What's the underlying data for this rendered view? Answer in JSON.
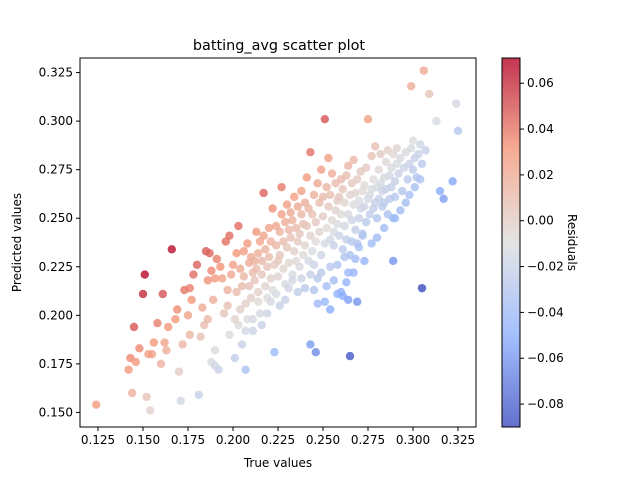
{
  "chart_data": {
    "type": "scatter",
    "title": "batting_avg scatter plot",
    "xlabel": "True values",
    "ylabel": "Predicted values",
    "xlim": [
      0.115,
      0.335
    ],
    "ylim": [
      0.1425,
      0.3325
    ],
    "xticks": [
      0.125,
      0.15,
      0.175,
      0.2,
      0.225,
      0.25,
      0.275,
      0.3,
      0.325
    ],
    "xtick_labels": [
      "0.125",
      "0.150",
      "0.175",
      "0.200",
      "0.225",
      "0.250",
      "0.275",
      "0.300",
      "0.325"
    ],
    "yticks": [
      0.15,
      0.175,
      0.2,
      0.225,
      0.25,
      0.275,
      0.3,
      0.325
    ],
    "ytick_labels": [
      "0.150",
      "0.175",
      "0.200",
      "0.225",
      "0.250",
      "0.275",
      "0.300",
      "0.325"
    ],
    "colorbar": {
      "label": "Residuals",
      "colormap": "coolwarm",
      "range": [
        -0.09,
        0.071
      ],
      "ticks": [
        0.06,
        0.04,
        0.02,
        0.0,
        -0.02,
        -0.04,
        -0.06,
        -0.08
      ],
      "tick_labels": [
        "0.06",
        "0.04",
        "0.02",
        "0.00",
        "−0.02",
        "−0.04",
        "−0.06",
        "−0.08"
      ]
    },
    "marker_alpha": 0.8,
    "points": [
      [
        0.124,
        0.154
      ],
      [
        0.142,
        0.172
      ],
      [
        0.143,
        0.178
      ],
      [
        0.144,
        0.16
      ],
      [
        0.145,
        0.194
      ],
      [
        0.148,
        0.183
      ],
      [
        0.15,
        0.211
      ],
      [
        0.151,
        0.221
      ],
      [
        0.152,
        0.158
      ],
      [
        0.154,
        0.151
      ],
      [
        0.155,
        0.18
      ],
      [
        0.156,
        0.186
      ],
      [
        0.16,
        0.175
      ],
      [
        0.161,
        0.211
      ],
      [
        0.162,
        0.186
      ],
      [
        0.164,
        0.194
      ],
      [
        0.166,
        0.234
      ],
      [
        0.168,
        0.198
      ],
      [
        0.17,
        0.171
      ],
      [
        0.171,
        0.156
      ],
      [
        0.172,
        0.185
      ],
      [
        0.173,
        0.213
      ],
      [
        0.175,
        0.2
      ],
      [
        0.176,
        0.214
      ],
      [
        0.177,
        0.208
      ],
      [
        0.178,
        0.221
      ],
      [
        0.18,
        0.226
      ],
      [
        0.181,
        0.159
      ],
      [
        0.182,
        0.189
      ],
      [
        0.184,
        0.195
      ],
      [
        0.185,
        0.233
      ],
      [
        0.186,
        0.218
      ],
      [
        0.186,
        0.198
      ],
      [
        0.187,
        0.232
      ],
      [
        0.188,
        0.176
      ],
      [
        0.188,
        0.223
      ],
      [
        0.189,
        0.208
      ],
      [
        0.19,
        0.174
      ],
      [
        0.19,
        0.182
      ],
      [
        0.191,
        0.229
      ],
      [
        0.192,
        0.172
      ],
      [
        0.193,
        0.225
      ],
      [
        0.194,
        0.219
      ],
      [
        0.195,
        0.201
      ],
      [
        0.196,
        0.238
      ],
      [
        0.197,
        0.213
      ],
      [
        0.198,
        0.241
      ],
      [
        0.198,
        0.19
      ],
      [
        0.199,
        0.221
      ],
      [
        0.2,
        0.226
      ],
      [
        0.201,
        0.178
      ],
      [
        0.202,
        0.212
      ],
      [
        0.202,
        0.232
      ],
      [
        0.203,
        0.246
      ],
      [
        0.203,
        0.195
      ],
      [
        0.204,
        0.224
      ],
      [
        0.205,
        0.215
      ],
      [
        0.205,
        0.185
      ],
      [
        0.206,
        0.233
      ],
      [
        0.206,
        0.22
      ],
      [
        0.207,
        0.206
      ],
      [
        0.207,
        0.172
      ],
      [
        0.208,
        0.237
      ],
      [
        0.208,
        0.198
      ],
      [
        0.209,
        0.227
      ],
      [
        0.209,
        0.215
      ],
      [
        0.21,
        0.23
      ],
      [
        0.21,
        0.209
      ],
      [
        0.211,
        0.222
      ],
      [
        0.211,
        0.192
      ],
      [
        0.212,
        0.228
      ],
      [
        0.212,
        0.218
      ],
      [
        0.213,
        0.224
      ],
      [
        0.213,
        0.243
      ],
      [
        0.214,
        0.232
      ],
      [
        0.214,
        0.212
      ],
      [
        0.215,
        0.238
      ],
      [
        0.215,
        0.201
      ],
      [
        0.216,
        0.228
      ],
      [
        0.216,
        0.221
      ],
      [
        0.217,
        0.263
      ],
      [
        0.217,
        0.241
      ],
      [
        0.218,
        0.215
      ],
      [
        0.218,
        0.234
      ],
      [
        0.219,
        0.209
      ],
      [
        0.219,
        0.225
      ],
      [
        0.22,
        0.23
      ],
      [
        0.22,
        0.245
      ],
      [
        0.221,
        0.219
      ],
      [
        0.221,
        0.238
      ],
      [
        0.222,
        0.255
      ],
      [
        0.222,
        0.213
      ],
      [
        0.223,
        0.226
      ],
      [
        0.223,
        0.181
      ],
      [
        0.224,
        0.236
      ],
      [
        0.224,
        0.246
      ],
      [
        0.225,
        0.22
      ],
      [
        0.225,
        0.228
      ],
      [
        0.226,
        0.243
      ],
      [
        0.226,
        0.231
      ],
      [
        0.227,
        0.266
      ],
      [
        0.227,
        0.252
      ],
      [
        0.228,
        0.224
      ],
      [
        0.228,
        0.238
      ],
      [
        0.229,
        0.248
      ],
      [
        0.229,
        0.216
      ],
      [
        0.23,
        0.257
      ],
      [
        0.23,
        0.235
      ],
      [
        0.231,
        0.244
      ],
      [
        0.231,
        0.227
      ],
      [
        0.232,
        0.253
      ],
      [
        0.232,
        0.24
      ],
      [
        0.233,
        0.221
      ],
      [
        0.233,
        0.249
      ],
      [
        0.234,
        0.233
      ],
      [
        0.234,
        0.261
      ],
      [
        0.235,
        0.245
      ],
      [
        0.235,
        0.228
      ],
      [
        0.236,
        0.256
      ],
      [
        0.236,
        0.238
      ],
      [
        0.237,
        0.242
      ],
      [
        0.237,
        0.225
      ],
      [
        0.238,
        0.252
      ],
      [
        0.238,
        0.264
      ],
      [
        0.239,
        0.247
      ],
      [
        0.239,
        0.231
      ],
      [
        0.24,
        0.258
      ],
      [
        0.24,
        0.236
      ],
      [
        0.241,
        0.271
      ],
      [
        0.241,
        0.246
      ],
      [
        0.242,
        0.255
      ],
      [
        0.242,
        0.228
      ],
      [
        0.243,
        0.241
      ],
      [
        0.243,
        0.284
      ],
      [
        0.244,
        0.252
      ],
      [
        0.244,
        0.233
      ],
      [
        0.245,
        0.262
      ],
      [
        0.245,
        0.226
      ],
      [
        0.246,
        0.248
      ],
      [
        0.246,
        0.238
      ],
      [
        0.247,
        0.268
      ],
      [
        0.247,
        0.219
      ],
      [
        0.248,
        0.258
      ],
      [
        0.248,
        0.243
      ],
      [
        0.249,
        0.275
      ],
      [
        0.249,
        0.231
      ],
      [
        0.25,
        0.261
      ],
      [
        0.25,
        0.251
      ],
      [
        0.251,
        0.301
      ],
      [
        0.251,
        0.237
      ],
      [
        0.252,
        0.266
      ],
      [
        0.252,
        0.245
      ],
      [
        0.253,
        0.256
      ],
      [
        0.253,
        0.281
      ],
      [
        0.254,
        0.239
      ],
      [
        0.254,
        0.262
      ],
      [
        0.255,
        0.249
      ],
      [
        0.255,
        0.273
      ],
      [
        0.256,
        0.243
      ],
      [
        0.256,
        0.236
      ],
      [
        0.257,
        0.268
      ],
      [
        0.257,
        0.254
      ],
      [
        0.258,
        0.247
      ],
      [
        0.258,
        0.259
      ],
      [
        0.259,
        0.261
      ],
      [
        0.259,
        0.241
      ],
      [
        0.26,
        0.27
      ],
      [
        0.26,
        0.252
      ],
      [
        0.261,
        0.234
      ],
      [
        0.261,
        0.265
      ],
      [
        0.262,
        0.258
      ],
      [
        0.262,
        0.246
      ],
      [
        0.263,
        0.272
      ],
      [
        0.263,
        0.239
      ],
      [
        0.264,
        0.277
      ],
      [
        0.264,
        0.252
      ],
      [
        0.265,
        0.262
      ],
      [
        0.265,
        0.231
      ],
      [
        0.266,
        0.268
      ],
      [
        0.266,
        0.249
      ],
      [
        0.267,
        0.28
      ],
      [
        0.267,
        0.257
      ],
      [
        0.268,
        0.244
      ],
      [
        0.268,
        0.263
      ],
      [
        0.269,
        0.27
      ],
      [
        0.269,
        0.237
      ],
      [
        0.27,
        0.259
      ],
      [
        0.27,
        0.25
      ],
      [
        0.271,
        0.274
      ],
      [
        0.271,
        0.255
      ],
      [
        0.272,
        0.264
      ],
      [
        0.272,
        0.242
      ],
      [
        0.273,
        0.267
      ],
      [
        0.273,
        0.256
      ],
      [
        0.274,
        0.276
      ],
      [
        0.274,
        0.248
      ],
      [
        0.275,
        0.26
      ],
      [
        0.275,
        0.301
      ],
      [
        0.276,
        0.262
      ],
      [
        0.276,
        0.252
      ],
      [
        0.277,
        0.282
      ],
      [
        0.277,
        0.265
      ],
      [
        0.278,
        0.255
      ],
      [
        0.278,
        0.27
      ],
      [
        0.279,
        0.258
      ],
      [
        0.279,
        0.287
      ],
      [
        0.28,
        0.266
      ],
      [
        0.28,
        0.25
      ],
      [
        0.281,
        0.275
      ],
      [
        0.281,
        0.26
      ],
      [
        0.282,
        0.283
      ],
      [
        0.282,
        0.268
      ],
      [
        0.283,
        0.256
      ],
      [
        0.283,
        0.264
      ],
      [
        0.284,
        0.271
      ],
      [
        0.284,
        0.258
      ],
      [
        0.285,
        0.279
      ],
      [
        0.285,
        0.265
      ],
      [
        0.286,
        0.252
      ],
      [
        0.286,
        0.285
      ],
      [
        0.287,
        0.272
      ],
      [
        0.287,
        0.26
      ],
      [
        0.288,
        0.266
      ],
      [
        0.288,
        0.276
      ],
      [
        0.289,
        0.25
      ],
      [
        0.289,
        0.283
      ],
      [
        0.29,
        0.269
      ],
      [
        0.29,
        0.261
      ],
      [
        0.291,
        0.278
      ],
      [
        0.291,
        0.286
      ],
      [
        0.292,
        0.273
      ],
      [
        0.293,
        0.281
      ],
      [
        0.294,
        0.264
      ],
      [
        0.295,
        0.276
      ],
      [
        0.296,
        0.284
      ],
      [
        0.297,
        0.27
      ],
      [
        0.298,
        0.278
      ],
      [
        0.299,
        0.318
      ],
      [
        0.299,
        0.286
      ],
      [
        0.3,
        0.275
      ],
      [
        0.3,
        0.29
      ],
      [
        0.301,
        0.281
      ],
      [
        0.302,
        0.271
      ],
      [
        0.303,
        0.283
      ],
      [
        0.304,
        0.288
      ],
      [
        0.305,
        0.278
      ],
      [
        0.306,
        0.326
      ],
      [
        0.307,
        0.285
      ],
      [
        0.309,
        0.314
      ],
      [
        0.313,
        0.3
      ],
      [
        0.315,
        0.264
      ],
      [
        0.317,
        0.26
      ],
      [
        0.322,
        0.269
      ],
      [
        0.324,
        0.309
      ],
      [
        0.325,
        0.295
      ],
      [
        0.146,
        0.176
      ],
      [
        0.153,
        0.18
      ],
      [
        0.158,
        0.196
      ],
      [
        0.163,
        0.182
      ],
      [
        0.169,
        0.203
      ],
      [
        0.176,
        0.19
      ],
      [
        0.183,
        0.204
      ],
      [
        0.19,
        0.219
      ],
      [
        0.197,
        0.205
      ],
      [
        0.201,
        0.198
      ],
      [
        0.204,
        0.203
      ],
      [
        0.207,
        0.192
      ],
      [
        0.211,
        0.198
      ],
      [
        0.214,
        0.207
      ],
      [
        0.216,
        0.195
      ],
      [
        0.219,
        0.201
      ],
      [
        0.221,
        0.207
      ],
      [
        0.224,
        0.211
      ],
      [
        0.226,
        0.205
      ],
      [
        0.229,
        0.208
      ],
      [
        0.231,
        0.214
      ],
      [
        0.233,
        0.218
      ],
      [
        0.236,
        0.212
      ],
      [
        0.238,
        0.219
      ],
      [
        0.24,
        0.214
      ],
      [
        0.243,
        0.221
      ],
      [
        0.245,
        0.213
      ],
      [
        0.247,
        0.206
      ],
      [
        0.249,
        0.222
      ],
      [
        0.252,
        0.215
      ],
      [
        0.254,
        0.225
      ],
      [
        0.256,
        0.218
      ],
      [
        0.258,
        0.226
      ],
      [
        0.26,
        0.212
      ],
      [
        0.262,
        0.23
      ],
      [
        0.264,
        0.222
      ],
      [
        0.266,
        0.238
      ],
      [
        0.268,
        0.229
      ],
      [
        0.27,
        0.235
      ],
      [
        0.272,
        0.241
      ],
      [
        0.243,
        0.185
      ],
      [
        0.246,
        0.181
      ],
      [
        0.251,
        0.207
      ],
      [
        0.254,
        0.203
      ],
      [
        0.258,
        0.211
      ],
      [
        0.261,
        0.21
      ],
      [
        0.264,
        0.208
      ],
      [
        0.265,
        0.179
      ],
      [
        0.269,
        0.207
      ],
      [
        0.289,
        0.228
      ],
      [
        0.305,
        0.214
      ],
      [
        0.263,
        0.217
      ],
      [
        0.267,
        0.222
      ],
      [
        0.273,
        0.228
      ],
      [
        0.277,
        0.237
      ],
      [
        0.28,
        0.24
      ],
      [
        0.284,
        0.245
      ],
      [
        0.29,
        0.25
      ],
      [
        0.293,
        0.254
      ],
      [
        0.296,
        0.258
      ],
      [
        0.298,
        0.262
      ],
      [
        0.301,
        0.266
      ],
      [
        0.304,
        0.27
      ]
    ]
  }
}
